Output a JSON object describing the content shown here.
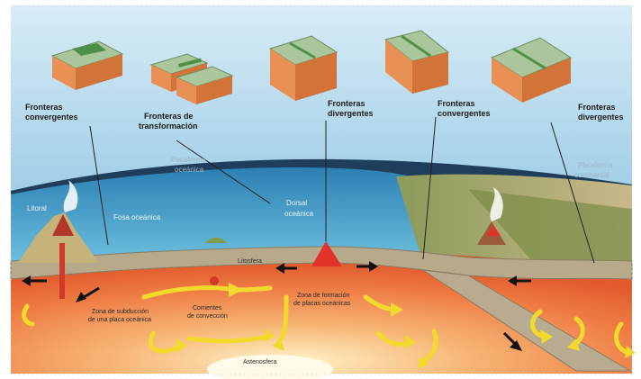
{
  "diagram": {
    "labels": {
      "convergent_left": [
        "Fronteras",
        "convergentes"
      ],
      "transform": [
        "Fronteras de",
        "transformación"
      ],
      "divergent_center": [
        "Fronteras",
        "divergentes"
      ],
      "convergent_right": [
        "Fronteras",
        "convergentes"
      ],
      "divergent_right": [
        "Fronteras",
        "divergentes"
      ],
      "oceanic_plateau": [
        "Plataforma",
        "oceánica"
      ],
      "continental_plateau": [
        "Plataforma",
        "continental"
      ],
      "left_margin": "Litoral",
      "trench": "Fosa oceánica",
      "ridge": [
        "Dorsal",
        "oceánica"
      ],
      "lithosphere": "Litosfera",
      "subduction_zone": [
        "Zona de subducción",
        "de una placa oceánica"
      ],
      "convection": [
        "Corrientes",
        "de convección"
      ],
      "formation_zone": [
        "Zona de formación",
        "de placas oceánicas"
      ],
      "asthenosphere": "Astenosfera"
    },
    "colors": {
      "sky": "#b7d9ec",
      "ocean": "#2f8fc0",
      "crust": "#c9b48d",
      "mantle": "#f3a06a",
      "mantle_hot": "#e85d2c",
      "arrow_yellow": "#f2d82e",
      "block_top": "#9fbf8c",
      "block_side": "#d97a3c"
    }
  }
}
